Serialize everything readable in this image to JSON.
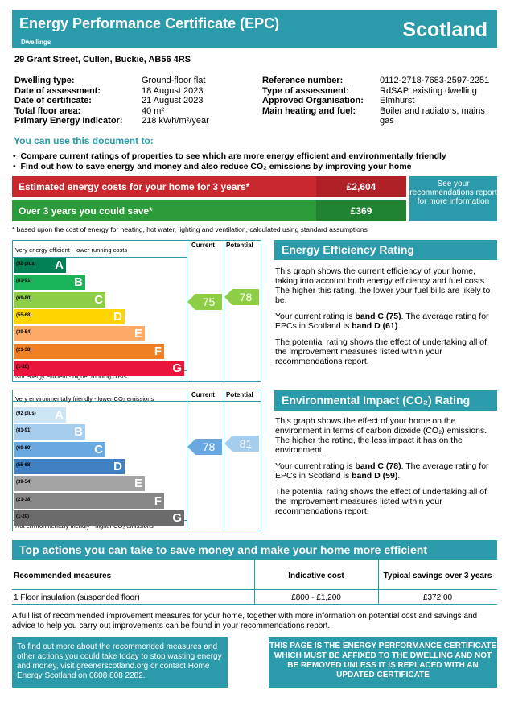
{
  "header": {
    "title": "Energy Performance Certificate (EPC)",
    "subtitle": "Dwellings",
    "region": "Scotland"
  },
  "address": "29 Grant Street, Cullen, Buckie, AB56 4RS",
  "details_left": [
    {
      "label": "Dwelling type:",
      "value": "Ground-floor flat"
    },
    {
      "label": "Date of assessment:",
      "value": "18 August 2023"
    },
    {
      "label": "Date of certificate:",
      "value": "21 August 2023"
    },
    {
      "label": "Total floor area:",
      "value": "40 m²"
    },
    {
      "label": "Primary Energy Indicator:",
      "value": "218 kWh/m²/year"
    }
  ],
  "details_right": [
    {
      "label": "Reference number:",
      "value": "0112-2718-7683-2597-2251"
    },
    {
      "label": "Type of assessment:",
      "value": "RdSAP, existing dwelling"
    },
    {
      "label": "Approved Organisation:",
      "value": "Elmhurst"
    },
    {
      "label": "Main heating and fuel:",
      "value": "Boiler and radiators, mains",
      "value2": "gas"
    }
  ],
  "use_doc": {
    "title": "You can use this document to:",
    "bullets": [
      "Compare current ratings of properties to see which are more energy efficient and environmentally friendly",
      "Find out how to save energy and money and also reduce CO₂ emissions by improving your home"
    ]
  },
  "costs": {
    "estimated_label": "Estimated energy costs for your home for 3 years*",
    "estimated_value": "£2,604",
    "save_label": "Over 3 years you could save*",
    "save_value": "£369",
    "recs_box": "See your recommendations report for more information",
    "footnote": "* based upon the cost of energy for heating, hot water, lighting and ventilation, calculated using standard assumptions"
  },
  "eer_chart": {
    "top_caption": "Very energy efficient - lower running costs",
    "bottom_caption": "Not energy efficient - higher running costs",
    "col_current": "Current",
    "col_potential": "Potential",
    "bands": [
      {
        "range": "(92 plus)",
        "letter": "A",
        "color": "#008054"
      },
      {
        "range": "(81-91)",
        "letter": "B",
        "color": "#19b459"
      },
      {
        "range": "(69-80)",
        "letter": "C",
        "color": "#8dce46"
      },
      {
        "range": "(55-68)",
        "letter": "D",
        "color": "#ffd500"
      },
      {
        "range": "(39-54)",
        "letter": "E",
        "color": "#fcaa65"
      },
      {
        "range": "(21-38)",
        "letter": "F",
        "color": "#ef8023"
      },
      {
        "range": "(1-20)",
        "letter": "G",
        "color": "#e9153b"
      }
    ],
    "current": 75,
    "potential": 78,
    "arrow_color": "#8dce46"
  },
  "eir_chart": {
    "top_caption": "Very environmentally friendly - lower CO₂ emissions",
    "bottom_caption": "Not environmentally friendly - higher CO₂ emissions",
    "col_current": "Current",
    "col_potential": "Potential",
    "bands": [
      {
        "range": "(92 plus)",
        "letter": "A",
        "color": "#cde6f7"
      },
      {
        "range": "(81-91)",
        "letter": "B",
        "color": "#a4cdee"
      },
      {
        "range": "(69-80)",
        "letter": "C",
        "color": "#6aa9e0"
      },
      {
        "range": "(55-68)",
        "letter": "D",
        "color": "#3f81c3"
      },
      {
        "range": "(39-54)",
        "letter": "E",
        "color": "#a4a4a4"
      },
      {
        "range": "(21-38)",
        "letter": "F",
        "color": "#878787"
      },
      {
        "range": "(1-20)",
        "letter": "G",
        "color": "#6b6b6b"
      }
    ],
    "current": 78,
    "potential": 81,
    "arrow_current_color": "#6aa9e0",
    "arrow_potential_color": "#a4cdee"
  },
  "eer_text": {
    "title": "Energy Efficiency Rating",
    "p1": "This graph shows the current efficiency of your home, taking into account both energy efficiency and fuel costs. The higher this rating, the lower your fuel bills are likely to be.",
    "p2a": "Your current rating is ",
    "p2b": "band C (75)",
    "p2c": ". The average rating for EPCs in Scotland is ",
    "p2d": "band D (61)",
    "p2e": ".",
    "p3": "The potential rating shows the effect of undertaking all of the improvement measures listed within your recommendations report."
  },
  "eir_text": {
    "title": "Environmental Impact (CO₂) Rating",
    "p1": "This graph shows the effect of your home on the environment in terms of carbon dioxide (CO₂) emissions. The higher the rating, the less impact it has on the environment.",
    "p2a": "Your current rating is ",
    "p2b": "band C (78)",
    "p2c": ". The average rating for EPCs in Scotland is ",
    "p2d": "band D (59)",
    "p2e": ".",
    "p3": "The potential rating shows the effect of undertaking all of the improvement measures listed within your recommendations report."
  },
  "actions": {
    "title": "Top actions you can take to save money and make your home more efficient",
    "col_measures": "Recommended measures",
    "col_cost": "Indicative cost",
    "col_savings": "Typical savings over 3 years",
    "rows": [
      {
        "measure": "1 Floor insulation (suspended floor)",
        "cost": "£800 - £1,200",
        "savings": "£372.00"
      }
    ]
  },
  "full_list": "A full list of recommended improvement measures for your home, together with more information on potential cost and savings and advice to help you carry out improvements can be found in your recommendations report.",
  "find_out": "To find out more about the recommended measures and other actions you could take today to stop wasting energy and money, visit greenerscotland.org or contact Home Energy Scotland on 0808 808 2282.",
  "cert_notice": "THIS PAGE IS THE ENERGY PERFORMANCE CERTIFICATE WHICH MUST BE AFFIXED TO THE DWELLING AND NOT BE REMOVED UNLESS IT IS REPLACED WITH AN UPDATED CERTIFICATE"
}
